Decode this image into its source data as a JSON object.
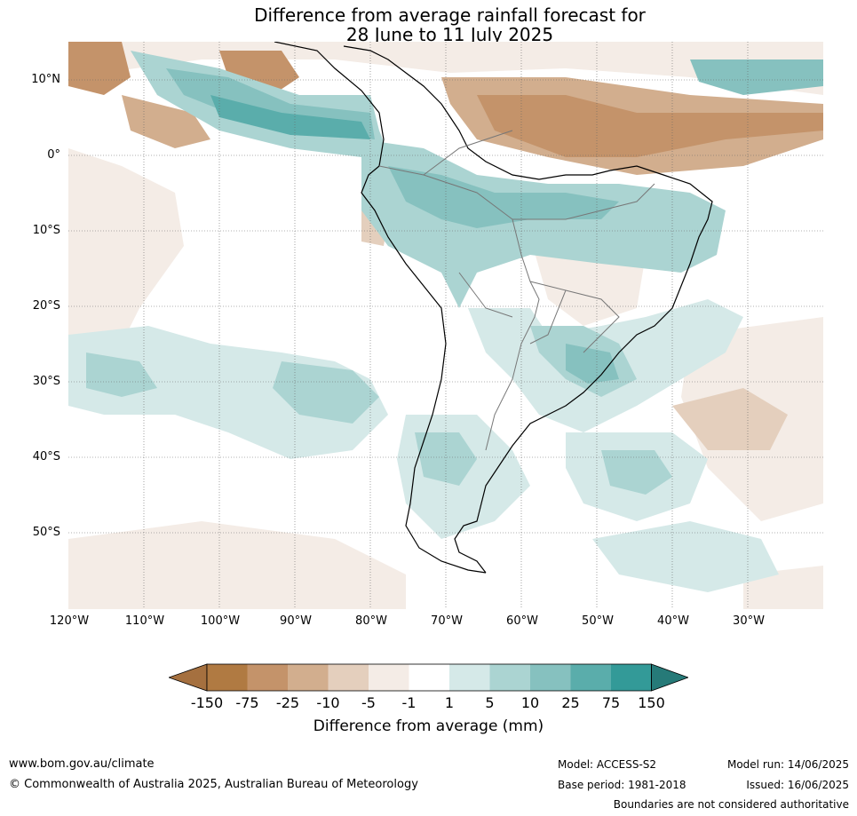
{
  "title": {
    "line1": "Difference from average rainfall forecast for",
    "line2": "28 June to 11 July 2025"
  },
  "map": {
    "lat_labels": [
      "10°N",
      "0°",
      "10°S",
      "20°S",
      "30°S",
      "40°S",
      "50°S"
    ],
    "lat_values": [
      10,
      0,
      -10,
      -20,
      -30,
      -40,
      -50
    ],
    "lon_labels": [
      "120°W",
      "110°W",
      "100°W",
      "90°W",
      "80°W",
      "70°W",
      "60°W",
      "50°W",
      "40°W",
      "30°W"
    ],
    "lon_values": [
      -120,
      -110,
      -100,
      -90,
      -80,
      -70,
      -60,
      -50,
      -40,
      -30
    ],
    "extent": {
      "lon_min": -120,
      "lon_max": -20,
      "lat_min": -60,
      "lat_max": 15
    }
  },
  "colorbar": {
    "ticks": [
      "-150",
      "-75",
      "-25",
      "-10",
      "-5",
      "-1",
      "1",
      "5",
      "10",
      "25",
      "75",
      "150"
    ],
    "colors": [
      "#a5703f",
      "#b07a42",
      "#c4936a",
      "#d2ae8e",
      "#e4cfbd",
      "#f4ece6",
      "#ffffff",
      "#d5e9e8",
      "#abd4d2",
      "#86c1bf",
      "#5aadab",
      "#339a98",
      "#267a78"
    ],
    "label": "Difference from average (mm)"
  },
  "footer": {
    "website": "www.bom.gov.au/climate",
    "copyright": "© Commonwealth of Australia 2025, Australian Bureau of Meteorology",
    "model": "Model: ACCESS-S2",
    "base_period": "Base period: 1981-2018",
    "model_run": "Model run: 14/06/2025",
    "issued": "Issued: 16/06/2025",
    "disclaimer": "Boundaries are not considered authoritative"
  }
}
